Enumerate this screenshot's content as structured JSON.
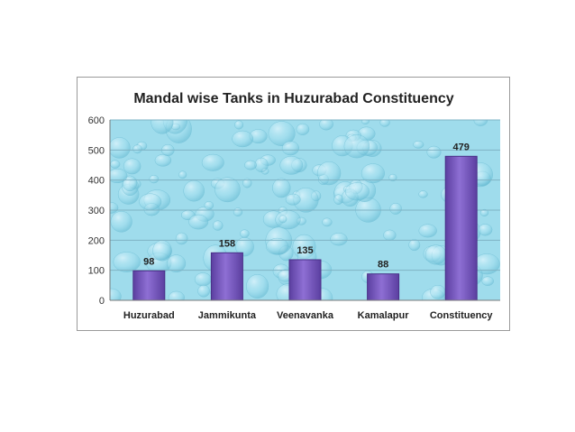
{
  "chart_data": {
    "type": "bar",
    "title": "Mandal wise Tanks in Huzurabad Constituency",
    "categories": [
      "Huzurabad",
      "Jammikunta",
      "Veenavanka",
      "Kamalapur",
      "Constituency"
    ],
    "values": [
      98,
      158,
      135,
      88,
      479
    ],
    "data_labels": [
      "98",
      "158",
      "135",
      "88",
      "479"
    ],
    "yticks": [
      "0",
      "100",
      "200",
      "300",
      "400",
      "500",
      "600"
    ],
    "ylim": [
      0,
      600
    ],
    "grid": true,
    "legend": "none",
    "colors": {
      "bar_fill": "#7f5fc2",
      "bar_stroke": "#4a3088",
      "plot_bg": "#9fdcec",
      "gridline": "#7fb3c4"
    }
  }
}
